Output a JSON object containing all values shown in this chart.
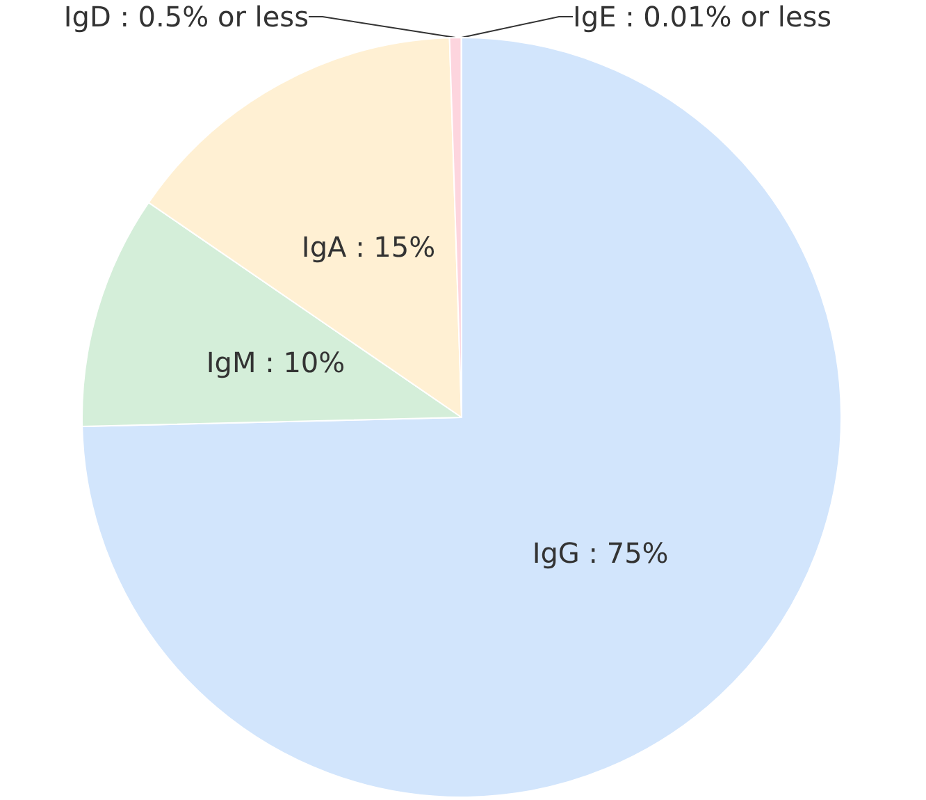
{
  "chart_data": {
    "type": "pie",
    "categories": [
      "IgG",
      "IgM",
      "IgA",
      "IgD",
      "IgE"
    ],
    "values": [
      75,
      10,
      15,
      0.5,
      0.01
    ],
    "value_labels": [
      "75%",
      "10%",
      "15%",
      "0.5% or less",
      "0.01% or less"
    ],
    "colors": [
      "#d2e5fc",
      "#d4eed9",
      "#fff0d3",
      "#fdd5de",
      "#dbe7f7"
    ],
    "legend": false
  }
}
